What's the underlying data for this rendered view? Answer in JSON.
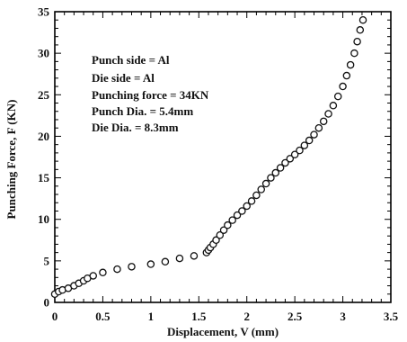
{
  "chart_data": {
    "type": "scatter",
    "title": "",
    "xlabel": "Displacement, V (mm)",
    "ylabel": "Punching Force, F (KN)",
    "xlim": [
      0,
      3.5
    ],
    "ylim": [
      0,
      35
    ],
    "xticks": [
      "0",
      "0.5",
      "1",
      "1.5",
      "2",
      "2.5",
      "3",
      "3.5"
    ],
    "yticks": [
      "0",
      "5",
      "10",
      "15",
      "20",
      "25",
      "30",
      "35"
    ],
    "grid": false,
    "marker": "open-circle",
    "annotations": [
      "Punch side = Al",
      "Die side = Al",
      "Punching force = 34KN",
      "Punch Dia. = 5.4mm",
      "Die Dia. = 8.3mm"
    ],
    "series": [
      {
        "points": [
          [
            0.0,
            1.0
          ],
          [
            0.04,
            1.3
          ],
          [
            0.08,
            1.5
          ],
          [
            0.14,
            1.7
          ],
          [
            0.2,
            2.0
          ],
          [
            0.25,
            2.3
          ],
          [
            0.3,
            2.6
          ],
          [
            0.34,
            2.9
          ],
          [
            0.4,
            3.2
          ],
          [
            0.5,
            3.6
          ],
          [
            0.65,
            4.0
          ],
          [
            0.8,
            4.3
          ],
          [
            1.0,
            4.6
          ],
          [
            1.15,
            4.9
          ],
          [
            1.3,
            5.3
          ],
          [
            1.45,
            5.6
          ],
          [
            1.58,
            6.0
          ],
          [
            1.6,
            6.3
          ],
          [
            1.62,
            6.6
          ],
          [
            1.65,
            7.0
          ],
          [
            1.68,
            7.5
          ],
          [
            1.72,
            8.1
          ],
          [
            1.76,
            8.7
          ],
          [
            1.8,
            9.3
          ],
          [
            1.85,
            9.9
          ],
          [
            1.9,
            10.5
          ],
          [
            1.95,
            11.0
          ],
          [
            2.0,
            11.6
          ],
          [
            2.05,
            12.2
          ],
          [
            2.1,
            12.9
          ],
          [
            2.15,
            13.6
          ],
          [
            2.2,
            14.3
          ],
          [
            2.25,
            15.0
          ],
          [
            2.3,
            15.6
          ],
          [
            2.35,
            16.2
          ],
          [
            2.4,
            16.8
          ],
          [
            2.45,
            17.3
          ],
          [
            2.5,
            17.8
          ],
          [
            2.55,
            18.3
          ],
          [
            2.6,
            18.9
          ],
          [
            2.65,
            19.5
          ],
          [
            2.7,
            20.2
          ],
          [
            2.75,
            21.0
          ],
          [
            2.8,
            21.8
          ],
          [
            2.85,
            22.7
          ],
          [
            2.9,
            23.7
          ],
          [
            2.95,
            24.8
          ],
          [
            3.0,
            26.0
          ],
          [
            3.04,
            27.3
          ],
          [
            3.08,
            28.6
          ],
          [
            3.12,
            30.0
          ],
          [
            3.15,
            31.4
          ],
          [
            3.18,
            32.8
          ],
          [
            3.21,
            34.0
          ]
        ]
      }
    ]
  }
}
